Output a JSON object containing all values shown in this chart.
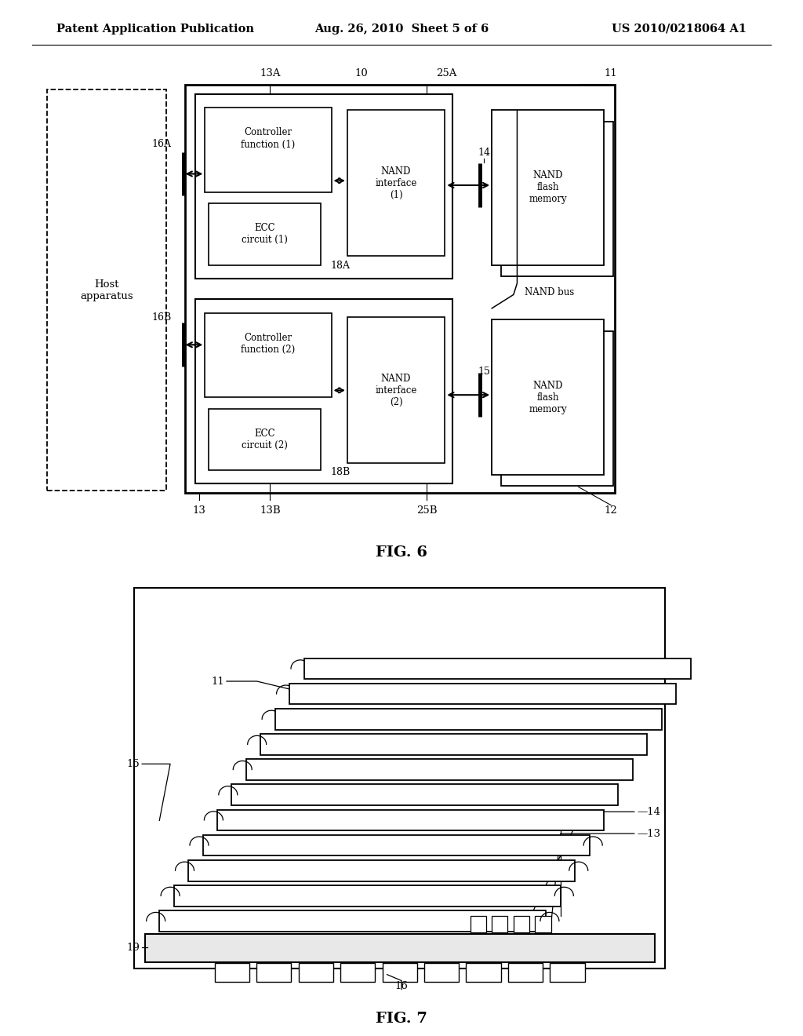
{
  "header_left": "Patent Application Publication",
  "header_center": "Aug. 26, 2010  Sheet 5 of 6",
  "header_right": "US 2010/0218064 A1",
  "fig6_label": "FIG. 6",
  "fig7_label": "FIG. 7",
  "bg_color": "#ffffff"
}
